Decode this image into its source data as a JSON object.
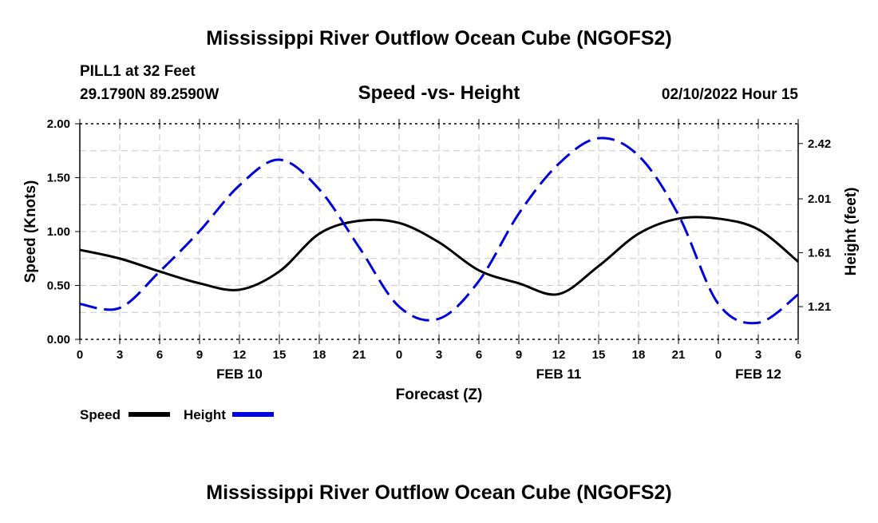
{
  "chart_data": {
    "type": "line",
    "title": "Mississippi River Outflow Ocean Cube (NGOFS2)",
    "subtitle": "Speed -vs- Height",
    "station": "PILL1 at 32 Feet",
    "location": "29.1790N  89.2590W",
    "date": "02/10/2022 Hour 15",
    "footer_title": "Mississippi River Outflow Ocean Cube (NGOFS2)",
    "xlabel": "Forecast (Z)",
    "ylabel": "Speed (Knots)",
    "y2label": "Height (feet)",
    "x_hours": [
      0,
      3,
      6,
      9,
      12,
      15,
      18,
      21,
      24,
      27,
      30,
      33,
      36,
      39,
      42,
      45,
      48,
      51,
      54
    ],
    "x_tick_labels": [
      "0",
      "3",
      "6",
      "9",
      "12",
      "15",
      "18",
      "21",
      "0",
      "3",
      "6",
      "9",
      "12",
      "15",
      "18",
      "21",
      "0",
      "3",
      "6"
    ],
    "date_labels": [
      {
        "hour": 12,
        "label": "FEB 10"
      },
      {
        "hour": 36,
        "label": "FEB 11"
      },
      {
        "hour": 51,
        "label": "FEB 12"
      }
    ],
    "ylim": [
      0,
      2.0
    ],
    "y_tick_labels": [
      "0.00",
      "0.50",
      "1.00",
      "1.50",
      "2.00"
    ],
    "y2lim": [
      0.967,
      2.567
    ],
    "y2_tick_labels": [
      "1.21",
      "1.61",
      "2.01",
      "2.42"
    ],
    "grid": true,
    "legend_placement": "bottom-left",
    "series": [
      {
        "name": "Speed",
        "color": "#000000",
        "dash": false,
        "values": [
          0.83,
          0.75,
          0.63,
          0.52,
          0.46,
          0.63,
          0.98,
          1.1,
          1.08,
          0.9,
          0.64,
          0.52,
          0.42,
          0.68,
          0.98,
          1.12,
          1.12,
          1.02,
          0.72
        ]
      },
      {
        "name": "Height",
        "color": "#0000dd",
        "dash": true,
        "axis": "right",
        "values": [
          1.23,
          1.2,
          1.47,
          1.77,
          2.11,
          2.3,
          2.08,
          1.65,
          1.21,
          1.12,
          1.4,
          1.9,
          2.27,
          2.46,
          2.33,
          1.89,
          1.23,
          1.09,
          1.3
        ]
      }
    ]
  }
}
